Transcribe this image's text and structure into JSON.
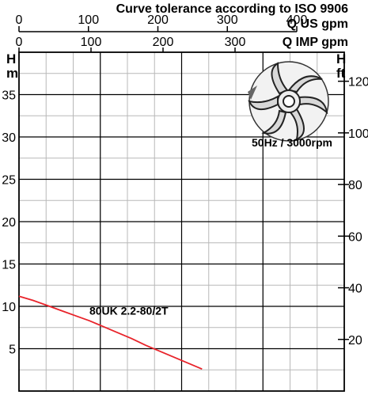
{
  "chart_data": {
    "type": "line",
    "title": "Curve tolerance according to ISO 9906",
    "flow_axes": [
      {
        "label": "Q US gpm",
        "ticks": [
          0,
          100,
          200,
          300,
          400
        ]
      },
      {
        "label": "Q IMP gpm",
        "ticks": [
          0,
          100,
          200,
          300
        ]
      }
    ],
    "left_axis": {
      "label_top": "H",
      "label_bottom": "m",
      "ylim": [
        0,
        40
      ],
      "ticks": [
        5,
        10,
        15,
        20,
        25,
        30,
        35
      ]
    },
    "right_axis": {
      "label_top": "H",
      "label_bottom": "ft",
      "ticks": [
        20,
        40,
        60,
        80,
        100,
        120
      ]
    },
    "x_range_us_gpm": [
      0,
      462
    ],
    "grid": true,
    "speed_label": "50Hz / 3000rpm",
    "impeller_icon": "pump-impeller-icon",
    "series": [
      {
        "name": "80UK 2.2-80/2T",
        "color": "#e8232a",
        "x": [
          0,
          20,
          40,
          60,
          80,
          100,
          120,
          140,
          160,
          180,
          200,
          220,
          240,
          260
        ],
        "y": [
          11.2,
          10.7,
          10.1,
          9.5,
          8.9,
          8.3,
          7.6,
          6.9,
          6.2,
          5.4,
          4.7,
          4.0,
          3.3,
          2.6
        ]
      }
    ],
    "series_label_at": [
      100,
      9.0
    ]
  }
}
